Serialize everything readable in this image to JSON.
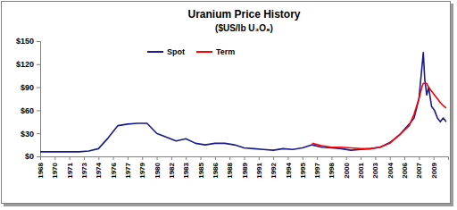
{
  "chart_data": {
    "type": "line",
    "title": "Uranium Price History",
    "subtitle": "($US/lb U₃O₈)",
    "x": [
      1968,
      1969,
      1970,
      1971,
      1972,
      1973,
      1974,
      1975,
      1976,
      1977,
      1978,
      1979,
      1980,
      1981,
      1982,
      1983,
      1984,
      1985,
      1986,
      1987,
      1988,
      1989,
      1990,
      1991,
      1992,
      1993,
      1994,
      1995,
      1996,
      1997,
      1998,
      1999,
      2000,
      2001,
      2002,
      2003,
      2004,
      2005,
      2006,
      2006.5,
      2007,
      2007.3,
      2007.45,
      2007.6,
      2007.8,
      2008,
      2008.3,
      2008.6,
      2008.9,
      2009.2,
      2009.5,
      2009.8
    ],
    "series": [
      {
        "name": "Spot",
        "color": "#1a1a8c",
        "values": [
          6,
          6,
          6,
          6,
          6,
          7,
          10,
          24,
          40,
          42,
          43,
          43,
          30,
          25,
          20,
          23,
          17,
          15,
          17,
          17,
          15,
          11,
          10,
          9,
          8,
          10,
          9,
          11,
          15,
          12,
          11,
          10,
          8,
          9,
          10,
          12,
          18,
          28,
          42,
          50,
          75,
          115,
          135,
          100,
          80,
          90,
          65,
          60,
          50,
          45,
          50,
          45
        ]
      },
      {
        "name": "Term",
        "color": "#ff0000",
        "values": [
          null,
          null,
          null,
          null,
          null,
          null,
          null,
          null,
          null,
          null,
          null,
          null,
          null,
          null,
          null,
          null,
          null,
          null,
          null,
          null,
          null,
          null,
          null,
          null,
          null,
          null,
          null,
          null,
          17,
          14,
          12,
          12,
          11,
          10,
          10,
          12,
          17,
          28,
          40,
          55,
          75,
          90,
          95,
          95,
          95,
          90,
          85,
          80,
          75,
          70,
          66,
          63
        ]
      }
    ],
    "xlim": [
      1968,
      2010
    ],
    "xticks": [
      1968,
      {
        "value": 1969.5,
        "label": "1970"
      },
      1971,
      {
        "value": 1972.5,
        "label": "1973"
      },
      1974,
      {
        "value": 1975.5,
        "label": "1976"
      },
      1977,
      {
        "value": 1978.5,
        "label": "1979"
      },
      1980,
      {
        "value": 1981.5,
        "label": "1982"
      },
      1983,
      {
        "value": 1984.5,
        "label": "1985"
      },
      1986,
      {
        "value": 1987.5,
        "label": "1988"
      },
      1989,
      {
        "value": 1990.5,
        "label": "1991"
      },
      1992,
      {
        "value": 1993.5,
        "label": "1994"
      },
      1995,
      {
        "value": 1996.5,
        "label": "1997"
      },
      1998,
      {
        "value": 1999.5,
        "label": "2000"
      },
      2001,
      {
        "value": 2002.5,
        "label": "2003"
      },
      2004,
      {
        "value": 2005.5,
        "label": "2006"
      },
      2007,
      {
        "value": 2008.5,
        "label": "2009"
      }
    ],
    "ylim": [
      0,
      150
    ],
    "yticks": [
      {
        "value": 0,
        "label": "$0"
      },
      {
        "value": 30,
        "label": "$30"
      },
      {
        "value": 60,
        "label": "$60"
      },
      {
        "value": 90,
        "label": "$90"
      },
      {
        "value": 120,
        "label": "$120"
      },
      {
        "value": 150,
        "label": "$150"
      }
    ],
    "legend": "top-left",
    "grid": false
  }
}
